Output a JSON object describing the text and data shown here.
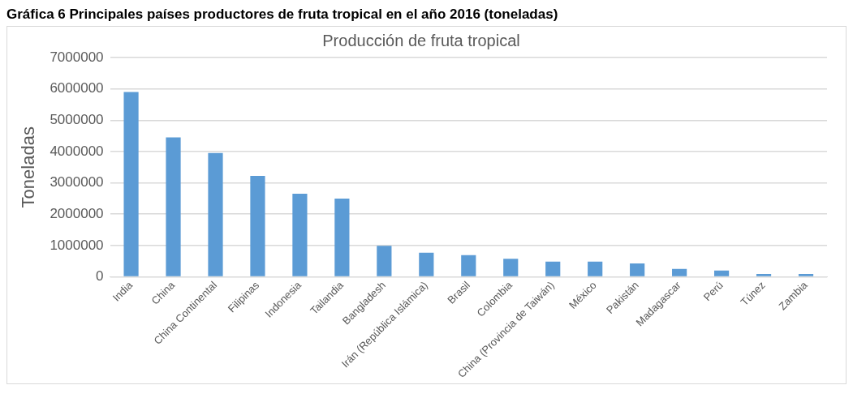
{
  "chart_data": {
    "type": "bar",
    "title": "Producción de fruta tropical",
    "ylabel": "Toneladas",
    "annotations": [
      "Gráfica 6 Principales países productores de fruta tropical en el año 2016 (toneladas)"
    ],
    "categories": [
      "India",
      "China",
      "China Continental",
      "Filipinas",
      "Indonesia",
      "Tailandia",
      "Bangladesh",
      "Irán (República Islámica)",
      "Brasil",
      "Colombia",
      "China (Provincia de Taiwán)",
      "México",
      "Pakistán",
      "Madagascar",
      "Perú",
      "Túnez",
      "Zambia"
    ],
    "values": [
      5900000,
      4450000,
      3950000,
      3220000,
      2650000,
      2500000,
      990000,
      770000,
      690000,
      575000,
      485000,
      485000,
      430000,
      250000,
      200000,
      90000,
      90000
    ],
    "color": "#5b9bd5",
    "ylim": [
      0,
      7000000
    ],
    "yticks": [
      0,
      1000000,
      2000000,
      3000000,
      4000000,
      5000000,
      6000000,
      7000000
    ],
    "grid": "y",
    "legend": false
  }
}
